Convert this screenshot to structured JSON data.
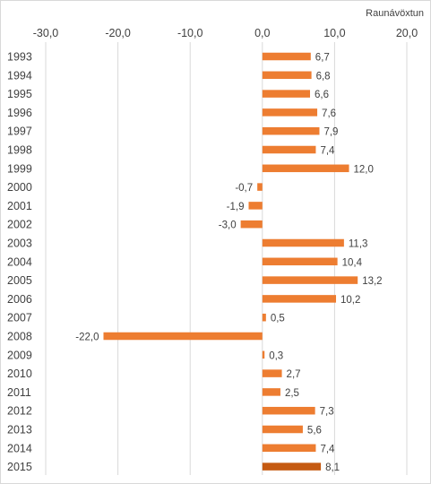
{
  "chart_data": {
    "type": "bar",
    "orientation": "horizontal",
    "title": "",
    "xlabel": "Raunávöxtun",
    "ylabel": "",
    "xlim": [
      -30,
      20
    ],
    "x_ticks": [
      -30,
      -20,
      -10,
      0,
      10,
      20
    ],
    "x_tick_labels": [
      "-30,0",
      "-20,0",
      "-10,0",
      "0,0",
      "10,0",
      "20,0"
    ],
    "x_axis_position": "top",
    "grid": true,
    "legend": "none",
    "categories": [
      "1993",
      "1994",
      "1995",
      "1996",
      "1997",
      "1998",
      "1999",
      "2000",
      "2001",
      "2002",
      "2003",
      "2004",
      "2005",
      "2006",
      "2007",
      "2008",
      "2009",
      "2010",
      "2011",
      "2012",
      "2013",
      "2014",
      "2015"
    ],
    "values": [
      6.7,
      6.8,
      6.6,
      7.6,
      7.9,
      7.4,
      12.0,
      -0.7,
      -1.9,
      -3.0,
      11.3,
      10.4,
      13.2,
      10.2,
      0.5,
      -22.0,
      0.3,
      2.7,
      2.5,
      7.3,
      5.6,
      7.4,
      8.1
    ],
    "value_labels": [
      "6,7",
      "6,8",
      "6,6",
      "7,6",
      "7,9",
      "7,4",
      "12,0",
      "-0,7",
      "-1,9",
      "-3,0",
      "11,3",
      "10,4",
      "13,2",
      "10,2",
      "0,5",
      "-22,0",
      "0,3",
      "2,7",
      "2,5",
      "7,3",
      "5,6",
      "7,4",
      "8,1"
    ],
    "colors": {
      "bar": "#ed7d31",
      "highlight": "#c55a11",
      "grid": "#d9d9d9",
      "text": "#404040"
    },
    "highlight_category": "2015"
  }
}
